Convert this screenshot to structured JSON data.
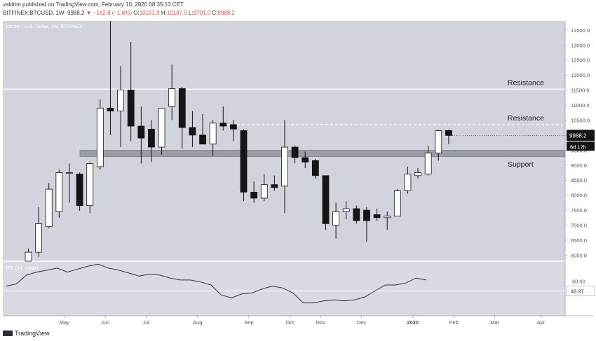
{
  "header": {
    "line1": "valdrint published on TradingView.com, February 10, 2020 08:35:13 CET",
    "symbol": "BITFINEX:BTCUSD, 1W",
    "last": "9988.2",
    "change": "▼ −162.8 (−1.6%)",
    "o_label": "O:",
    "o_value": "10151.9",
    "h_label": "H:",
    "h_value": "10187.0",
    "l_label": "L:",
    "l_value": "9701.0",
    "c_label": "C:",
    "c_value": "9988.2"
  },
  "footer": {
    "logo_text": "TradingView"
  },
  "colors": {
    "plot_bg": "#d1d4dc",
    "rsi_bg": "#d9dbe2",
    "bull": "#ffffff",
    "bear": "#151515",
    "zone": "#9598a1"
  },
  "chart_data": {
    "type": "candlestick",
    "title": "Bitcoin / U.S. Dollar, 1W, BITFINEX",
    "ylim": [
      5800,
      13800
    ],
    "y_ticks": [
      "6000.0",
      "6500.0",
      "7000.0",
      "7500.0",
      "8000.0",
      "8500.0",
      "9000.0",
      "9500.0",
      "10000.0",
      "10500.0",
      "11000.0",
      "11500.0",
      "12000.0",
      "12500.0",
      "13000.0",
      "13500.0"
    ],
    "x_labels": [
      "May",
      "Jun",
      "Jul",
      "Aug",
      "Sep",
      "Oct",
      "Nov",
      "Dec",
      "2020",
      "Feb",
      "Mar",
      "Apr"
    ],
    "candles": [
      {
        "o": 5780,
        "h": 6220,
        "l": 5750,
        "c": 6100
      },
      {
        "o": 6100,
        "h": 7600,
        "l": 5950,
        "c": 7050
      },
      {
        "o": 6950,
        "h": 8400,
        "l": 6900,
        "c": 8200
      },
      {
        "o": 7450,
        "h": 8850,
        "l": 7250,
        "c": 8750
      },
      {
        "o": 8750,
        "h": 9050,
        "l": 7750,
        "c": 8750
      },
      {
        "o": 8700,
        "h": 8750,
        "l": 7480,
        "c": 7650
      },
      {
        "o": 7650,
        "h": 9100,
        "l": 7400,
        "c": 9050
      },
      {
        "o": 8950,
        "h": 11180,
        "l": 8850,
        "c": 10900
      },
      {
        "o": 10900,
        "h": 13800,
        "l": 10000,
        "c": 10800
      },
      {
        "o": 10800,
        "h": 12300,
        "l": 9600,
        "c": 11500
      },
      {
        "o": 11500,
        "h": 13100,
        "l": 9800,
        "c": 10300
      },
      {
        "o": 10300,
        "h": 10950,
        "l": 9050,
        "c": 9900
      },
      {
        "o": 10200,
        "h": 10500,
        "l": 9100,
        "c": 9600
      },
      {
        "o": 9600,
        "h": 10900,
        "l": 9350,
        "c": 10900
      },
      {
        "o": 10950,
        "h": 12350,
        "l": 10500,
        "c": 11550
      },
      {
        "o": 11550,
        "h": 11600,
        "l": 9550,
        "c": 10250
      },
      {
        "o": 10250,
        "h": 10800,
        "l": 9600,
        "c": 10000
      },
      {
        "o": 10000,
        "h": 10700,
        "l": 9700,
        "c": 9700
      },
      {
        "o": 9700,
        "h": 10500,
        "l": 9300,
        "c": 10400
      },
      {
        "o": 10400,
        "h": 10950,
        "l": 10150,
        "c": 10300
      },
      {
        "o": 10350,
        "h": 10500,
        "l": 9800,
        "c": 10200
      },
      {
        "o": 10150,
        "h": 10200,
        "l": 7800,
        "c": 8100
      },
      {
        "o": 8100,
        "h": 8450,
        "l": 7750,
        "c": 7900
      },
      {
        "o": 7900,
        "h": 8700,
        "l": 7800,
        "c": 8350
      },
      {
        "o": 8350,
        "h": 8650,
        "l": 8150,
        "c": 8250
      },
      {
        "o": 8300,
        "h": 10500,
        "l": 7400,
        "c": 9600
      },
      {
        "o": 9600,
        "h": 9650,
        "l": 9050,
        "c": 9250
      },
      {
        "o": 9250,
        "h": 9450,
        "l": 8900,
        "c": 9100
      },
      {
        "o": 9150,
        "h": 9200,
        "l": 8550,
        "c": 8650
      },
      {
        "o": 8650,
        "h": 8650,
        "l": 6850,
        "c": 7050
      },
      {
        "o": 7000,
        "h": 7750,
        "l": 6550,
        "c": 7450
      },
      {
        "o": 7450,
        "h": 7800,
        "l": 7200,
        "c": 7550
      },
      {
        "o": 7550,
        "h": 7650,
        "l": 7050,
        "c": 7150
      },
      {
        "o": 7500,
        "h": 7600,
        "l": 6450,
        "c": 7150
      },
      {
        "o": 7350,
        "h": 7550,
        "l": 7150,
        "c": 7250
      },
      {
        "o": 7250,
        "h": 7450,
        "l": 6850,
        "c": 7300
      },
      {
        "o": 7300,
        "h": 8200,
        "l": 7300,
        "c": 8150
      },
      {
        "o": 8150,
        "h": 8950,
        "l": 8050,
        "c": 8700
      },
      {
        "o": 8650,
        "h": 8900,
        "l": 8550,
        "c": 8750
      },
      {
        "o": 8700,
        "h": 9650,
        "l": 8650,
        "c": 9400
      },
      {
        "o": 9400,
        "h": 10180,
        "l": 9150,
        "c": 10150
      },
      {
        "o": 10151.9,
        "h": 10187.0,
        "l": 9701.0,
        "c": 9988.2
      }
    ],
    "x_label_candle_index": [
      3.5,
      7.5,
      11.5,
      16.5,
      21.5,
      25.5,
      28.5,
      32.5,
      37.5,
      41.5,
      45.5,
      50
    ],
    "levels": [
      {
        "label": "Resistance",
        "value": 11530,
        "style": "solid"
      },
      {
        "label": "Resistance",
        "value": 10350,
        "style": "dashed"
      }
    ],
    "support_zone": {
      "label": "Support",
      "low": 9280,
      "high": 9500
    },
    "last_price_label": "9988.2",
    "countdown_label": "6d 17h",
    "rsi": {
      "label": "RSI (14, close)",
      "ylim": [
        25,
        80
      ],
      "ticks": [
        "60.00"
      ],
      "last_value_label": "49.97",
      "band_level": 49.97,
      "values": [
        55,
        57,
        66,
        69,
        71,
        73,
        69,
        72,
        75,
        77,
        73,
        71,
        68,
        65,
        67,
        66,
        63,
        61,
        61,
        59,
        56,
        46,
        43,
        47,
        48,
        52,
        55,
        53,
        48,
        38,
        38,
        40,
        41,
        40,
        41,
        44,
        50,
        56,
        56,
        58,
        63,
        61
      ]
    }
  }
}
